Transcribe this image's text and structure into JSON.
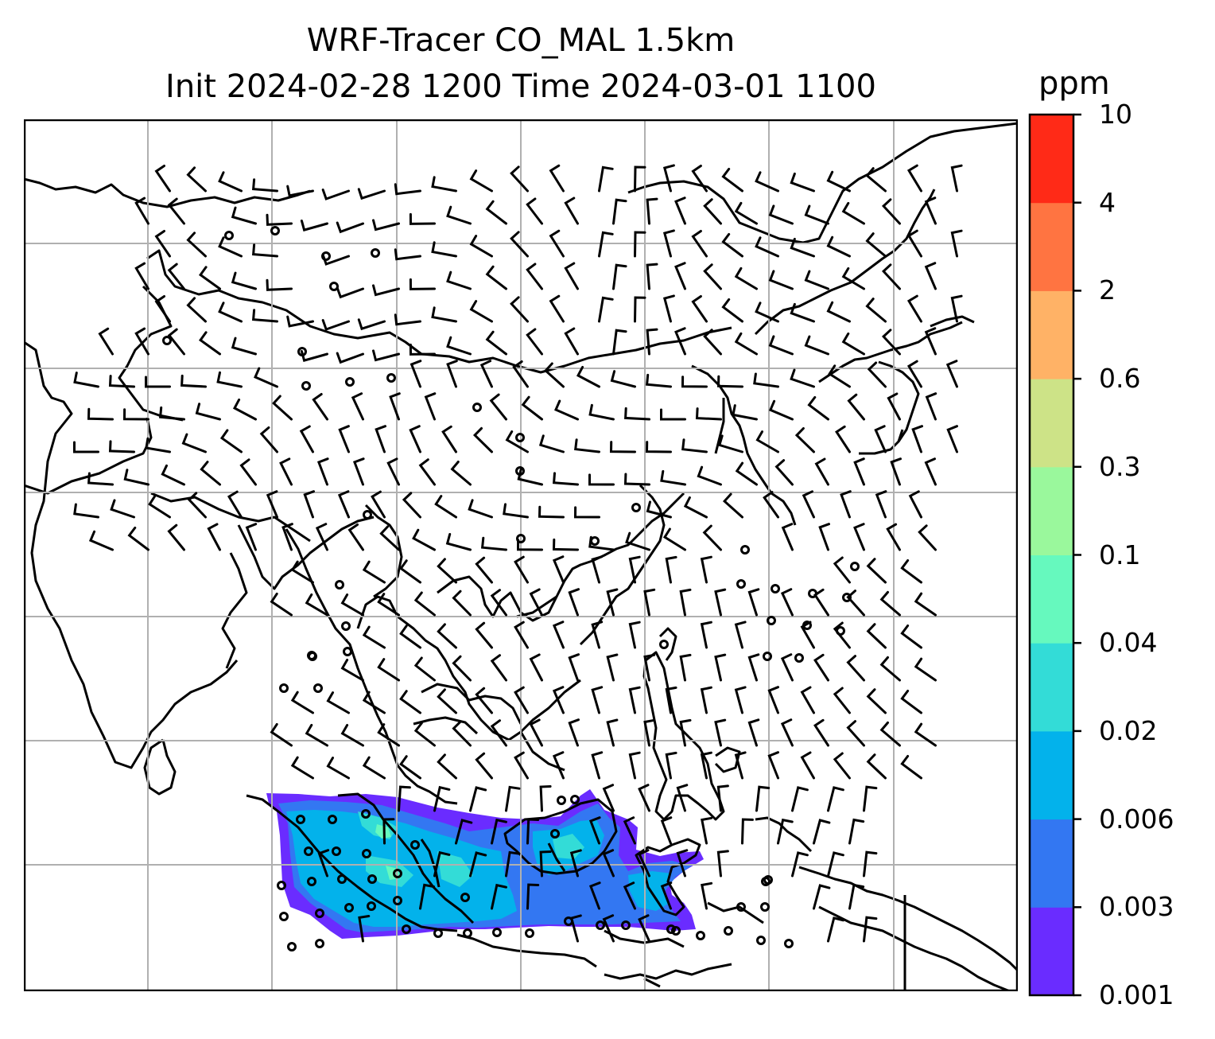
{
  "title": {
    "line1": "WRF-Tracer CO_MAL 1.5km",
    "line2": "Init 2024-02-28 1200 Time 2024-03-01 1100"
  },
  "colorbar": {
    "unit": "ppm",
    "ticks": [
      "0.001",
      "0.003",
      "0.006",
      "0.02",
      "0.04",
      "0.1",
      "0.3",
      "0.6",
      "2",
      "4",
      "10"
    ],
    "colors": [
      "#6a2cff",
      "#3377f2",
      "#03b2eb",
      "#33dcd7",
      "#66f9be",
      "#9af89c",
      "#cde387",
      "#ffb266",
      "#ff7441",
      "#ff2a17"
    ]
  }
}
